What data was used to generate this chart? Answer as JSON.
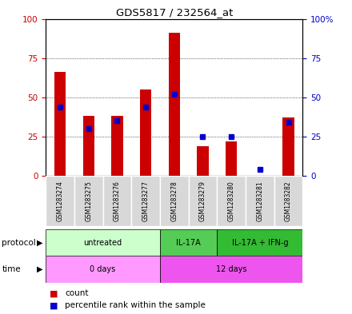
{
  "title": "GDS5817 / 232564_at",
  "samples": [
    "GSM1283274",
    "GSM1283275",
    "GSM1283276",
    "GSM1283277",
    "GSM1283278",
    "GSM1283279",
    "GSM1283280",
    "GSM1283281",
    "GSM1283282"
  ],
  "count_values": [
    66,
    38,
    38,
    55,
    91,
    19,
    22,
    0,
    37
  ],
  "percentile_values": [
    44,
    30,
    35,
    44,
    52,
    25,
    25,
    4,
    34
  ],
  "bar_color": "#cc0000",
  "dot_color": "#0000cc",
  "ylim": [
    0,
    100
  ],
  "yticks": [
    0,
    25,
    50,
    75,
    100
  ],
  "protocol_groups": [
    {
      "label": "untreated",
      "start": 0,
      "end": 4,
      "color": "#ccffcc"
    },
    {
      "label": "IL-17A",
      "start": 4,
      "end": 6,
      "color": "#55cc55"
    },
    {
      "label": "IL-17A + IFN-g",
      "start": 6,
      "end": 9,
      "color": "#33bb33"
    }
  ],
  "time_groups": [
    {
      "label": "0 days",
      "start": 0,
      "end": 4,
      "color": "#ff99ff"
    },
    {
      "label": "12 days",
      "start": 4,
      "end": 9,
      "color": "#ee55ee"
    }
  ],
  "left_axis_color": "#cc0000",
  "right_axis_color": "#0000cc",
  "legend_count_label": "count",
  "legend_pct_label": "percentile rank within the sample",
  "bar_width": 0.4
}
